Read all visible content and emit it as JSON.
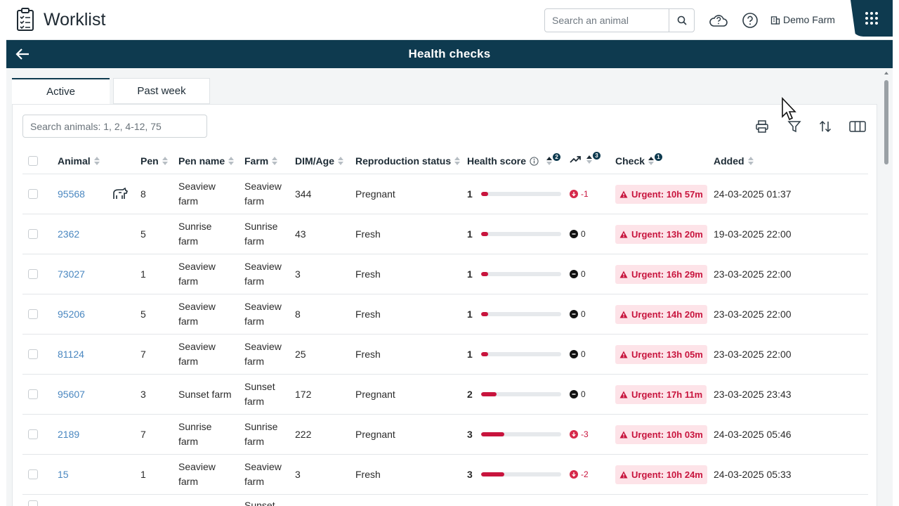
{
  "header": {
    "title": "Worklist",
    "search_placeholder": "Search an animal",
    "farm_label": "Demo Farm"
  },
  "banner": {
    "title": "Health checks"
  },
  "tabs": [
    {
      "label": "Active",
      "active": true
    },
    {
      "label": "Past week",
      "active": false
    }
  ],
  "filter": {
    "placeholder": "Search animals: 1, 2, 4-12, 75"
  },
  "columns": {
    "animal": "Animal",
    "pen": "Pen",
    "pen_name": "Pen name",
    "farm": "Farm",
    "dim_age": "DIM/Age",
    "repro": "Reproduction status",
    "health_score": "Health score",
    "health_score_badge": "2",
    "trend_badge": "3",
    "check": "Check",
    "check_badge": "1",
    "added": "Added"
  },
  "colors": {
    "accent": "#0e3a4f",
    "urgent": "#c8143d",
    "link": "#4a87c0"
  },
  "rows": [
    {
      "animal": "95568",
      "cow_icon": true,
      "pen": "8",
      "pen_name_1": "Seaview",
      "pen_name_2": "farm",
      "farm_1": "Seaview",
      "farm_2": "farm",
      "dim": "344",
      "repro": "Pregnant",
      "score": "1",
      "score_frac": 0.09,
      "trend": "-1",
      "trend_type": "neg",
      "check": "Urgent: 10h 57m",
      "added": "24-03-2025 01:37"
    },
    {
      "animal": "2362",
      "cow_icon": false,
      "pen": "5",
      "pen_name_1": "Sunrise",
      "pen_name_2": "farm",
      "farm_1": "Sunrise",
      "farm_2": "farm",
      "dim": "43",
      "repro": "Fresh",
      "score": "1",
      "score_frac": 0.09,
      "trend": "0",
      "trend_type": "zero",
      "check": "Urgent: 13h 20m",
      "added": "19-03-2025 22:00"
    },
    {
      "animal": "73027",
      "cow_icon": false,
      "pen": "1",
      "pen_name_1": "Seaview",
      "pen_name_2": "farm",
      "farm_1": "Seaview",
      "farm_2": "farm",
      "dim": "3",
      "repro": "Fresh",
      "score": "1",
      "score_frac": 0.09,
      "trend": "0",
      "trend_type": "zero",
      "check": "Urgent: 16h 29m",
      "added": "23-03-2025 22:00"
    },
    {
      "animal": "95206",
      "cow_icon": false,
      "pen": "5",
      "pen_name_1": "Seaview",
      "pen_name_2": "farm",
      "farm_1": "Seaview",
      "farm_2": "farm",
      "dim": "8",
      "repro": "Fresh",
      "score": "1",
      "score_frac": 0.09,
      "trend": "0",
      "trend_type": "zero",
      "check": "Urgent: 14h 20m",
      "added": "23-03-2025 22:00"
    },
    {
      "animal": "81124",
      "cow_icon": false,
      "pen": "7",
      "pen_name_1": "Seaview",
      "pen_name_2": "farm",
      "farm_1": "Seaview",
      "farm_2": "farm",
      "dim": "25",
      "repro": "Fresh",
      "score": "1",
      "score_frac": 0.09,
      "trend": "0",
      "trend_type": "zero",
      "check": "Urgent: 13h 05m",
      "added": "23-03-2025 22:00"
    },
    {
      "animal": "95607",
      "cow_icon": false,
      "pen": "3",
      "pen_name_1": "Sunset farm",
      "pen_name_2": "",
      "farm_1": "Sunset",
      "farm_2": "farm",
      "dim": "172",
      "repro": "Pregnant",
      "score": "2",
      "score_frac": 0.19,
      "trend": "0",
      "trend_type": "zero",
      "check": "Urgent: 17h 11m",
      "added": "23-03-2025 23:43"
    },
    {
      "animal": "2189",
      "cow_icon": false,
      "pen": "7",
      "pen_name_1": "Sunrise",
      "pen_name_2": "farm",
      "farm_1": "Sunrise",
      "farm_2": "farm",
      "dim": "222",
      "repro": "Pregnant",
      "score": "3",
      "score_frac": 0.29,
      "trend": "-3",
      "trend_type": "neg",
      "check": "Urgent: 10h 03m",
      "added": "24-03-2025 05:46"
    },
    {
      "animal": "15",
      "cow_icon": false,
      "pen": "1",
      "pen_name_1": "Seaview",
      "pen_name_2": "farm",
      "farm_1": "Seaview",
      "farm_2": "farm",
      "dim": "3",
      "repro": "Fresh",
      "score": "3",
      "score_frac": 0.29,
      "trend": "-2",
      "trend_type": "neg",
      "check": "Urgent: 10h 24m",
      "added": "24-03-2025 05:33"
    },
    {
      "animal": "",
      "cow_icon": false,
      "pen": "",
      "pen_name_1": "",
      "pen_name_2": "",
      "farm_1": "Sunset",
      "farm_2": "",
      "dim": "",
      "repro": "",
      "score": "",
      "score_frac": 0,
      "trend": "",
      "trend_type": "none",
      "check": "",
      "added": ""
    }
  ]
}
